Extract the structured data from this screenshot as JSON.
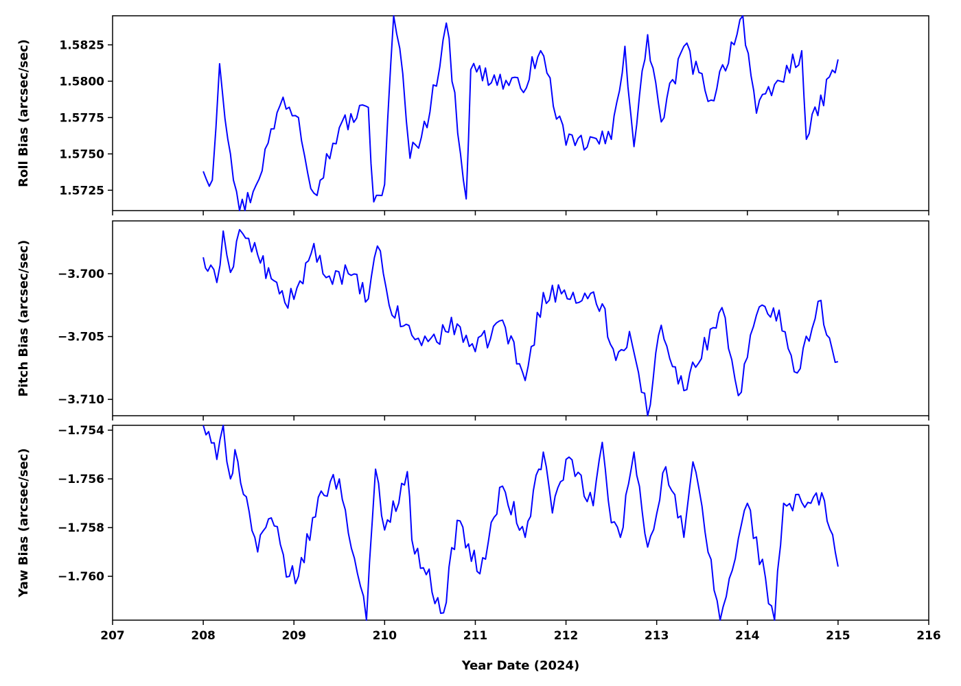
{
  "chart_data": [
    {
      "type": "line",
      "ylabel": "Roll Bias (arcsec/sec)",
      "ylim": [
        1.5711,
        1.5845
      ],
      "yticks": [
        1.5725,
        1.575,
        1.5775,
        1.58,
        1.5825
      ],
      "ytick_labels": [
        "1.5725",
        "1.5750",
        "1.5775",
        "1.5800",
        "1.5825"
      ],
      "color": "#0000ff",
      "key_points": [
        [
          208.0,
          1.5738
        ],
        [
          208.1,
          1.5732
        ],
        [
          208.18,
          1.5812
        ],
        [
          208.3,
          1.575
        ],
        [
          208.4,
          1.5711
        ],
        [
          208.55,
          1.5724
        ],
        [
          208.88,
          1.5789
        ],
        [
          209.05,
          1.5775
        ],
        [
          209.22,
          1.5723
        ],
        [
          209.5,
          1.5768
        ],
        [
          209.82,
          1.5782
        ],
        [
          209.88,
          1.5717
        ],
        [
          210.0,
          1.5729
        ],
        [
          210.1,
          1.5845
        ],
        [
          210.2,
          1.5805
        ],
        [
          210.28,
          1.5747
        ],
        [
          210.5,
          1.5779
        ],
        [
          210.68,
          1.584
        ],
        [
          210.9,
          1.5719
        ],
        [
          210.95,
          1.5808
        ],
        [
          211.5,
          1.5795
        ],
        [
          211.72,
          1.5821
        ],
        [
          212.0,
          1.5756
        ],
        [
          212.5,
          1.576
        ],
        [
          212.65,
          1.5824
        ],
        [
          212.75,
          1.5755
        ],
        [
          212.9,
          1.5832
        ],
        [
          213.05,
          1.5772
        ],
        [
          213.3,
          1.5824
        ],
        [
          213.6,
          1.5787
        ],
        [
          213.95,
          1.5845
        ],
        [
          214.1,
          1.5778
        ],
        [
          214.6,
          1.5821
        ],
        [
          214.65,
          1.576
        ],
        [
          215.0,
          1.5815
        ]
      ]
    },
    {
      "type": "line",
      "ylabel": "Pitch Bias (arcsec/sec)",
      "ylim": [
        -3.7113,
        -3.6958
      ],
      "yticks": [
        -3.71,
        -3.705,
        -3.7
      ],
      "ytick_labels": [
        "−3.710",
        "−3.705",
        "−3.700"
      ],
      "color": "#0000ff",
      "key_points": [
        [
          208.0,
          -3.6987
        ],
        [
          208.05,
          -3.6998
        ],
        [
          208.15,
          -3.7007
        ],
        [
          208.22,
          -3.6966
        ],
        [
          208.3,
          -3.6999
        ],
        [
          208.4,
          -3.6965
        ],
        [
          208.6,
          -3.6985
        ],
        [
          208.75,
          -3.7004
        ],
        [
          208.9,
          -3.7023
        ],
        [
          209.1,
          -3.7008
        ],
        [
          209.22,
          -3.6976
        ],
        [
          209.32,
          -3.7
        ],
        [
          209.6,
          -3.7
        ],
        [
          209.82,
          -3.702
        ],
        [
          209.92,
          -3.6978
        ],
        [
          210.05,
          -3.7025
        ],
        [
          210.3,
          -3.7049
        ],
        [
          210.48,
          -3.7054
        ],
        [
          210.8,
          -3.704
        ],
        [
          211.0,
          -3.7062
        ],
        [
          211.3,
          -3.7037
        ],
        [
          211.55,
          -3.7085
        ],
        [
          211.75,
          -3.7015
        ],
        [
          211.95,
          -3.7016
        ],
        [
          212.4,
          -3.7024
        ],
        [
          212.55,
          -3.7069
        ],
        [
          212.7,
          -3.7046
        ],
        [
          212.9,
          -3.7113
        ],
        [
          213.05,
          -3.7041
        ],
        [
          213.3,
          -3.7093
        ],
        [
          213.72,
          -3.7027
        ],
        [
          213.9,
          -3.7097
        ],
        [
          214.1,
          -3.7033
        ],
        [
          214.35,
          -3.7029
        ],
        [
          214.55,
          -3.7079
        ],
        [
          214.78,
          -3.7022
        ],
        [
          215.0,
          -3.707
        ]
      ]
    },
    {
      "type": "line",
      "ylabel": "Yaw Bias (arcsec/sec)",
      "xlabel": "Year Date (2024)",
      "xlim": [
        207,
        216
      ],
      "xticks": [
        207,
        208,
        209,
        210,
        211,
        212,
        213,
        214,
        215,
        216
      ],
      "xtick_labels": [
        "207",
        "208",
        "209",
        "210",
        "211",
        "212",
        "213",
        "214",
        "215",
        "216"
      ],
      "ylim": [
        -1.7618,
        -1.7538
      ],
      "yticks": [
        -1.76,
        -1.758,
        -1.756,
        -1.754
      ],
      "ytick_labels": [
        "−1.760",
        "−1.758",
        "−1.756",
        "−1.754"
      ],
      "color": "#0000ff",
      "key_points": [
        [
          208.0,
          -1.7538
        ],
        [
          208.15,
          -1.7552
        ],
        [
          208.22,
          -1.7538
        ],
        [
          208.3,
          -1.756
        ],
        [
          208.35,
          -1.7548
        ],
        [
          208.6,
          -1.759
        ],
        [
          208.75,
          -1.7576
        ],
        [
          208.95,
          -1.76
        ],
        [
          209.05,
          -1.76
        ],
        [
          209.3,
          -1.7565
        ],
        [
          209.5,
          -1.756
        ],
        [
          209.8,
          -1.7618
        ],
        [
          209.9,
          -1.7556
        ],
        [
          210.0,
          -1.7581
        ],
        [
          210.25,
          -1.7557
        ],
        [
          210.3,
          -1.7585
        ],
        [
          210.65,
          -1.7615
        ],
        [
          210.8,
          -1.7577
        ],
        [
          211.05,
          -1.7599
        ],
        [
          211.3,
          -1.7563
        ],
        [
          211.55,
          -1.7584
        ],
        [
          211.7,
          -1.7556
        ],
        [
          211.75,
          -1.7549
        ],
        [
          211.85,
          -1.7574
        ],
        [
          212.0,
          -1.7552
        ],
        [
          212.3,
          -1.7571
        ],
        [
          212.4,
          -1.7545
        ],
        [
          212.5,
          -1.7578
        ],
        [
          212.6,
          -1.7584
        ],
        [
          212.75,
          -1.7549
        ],
        [
          212.9,
          -1.7588
        ],
        [
          213.1,
          -1.7555
        ],
        [
          213.3,
          -1.7584
        ],
        [
          213.4,
          -1.7553
        ],
        [
          213.7,
          -1.7618
        ],
        [
          214.0,
          -1.757
        ],
        [
          214.3,
          -1.7618
        ],
        [
          214.4,
          -1.757
        ],
        [
          214.7,
          -1.757
        ],
        [
          214.85,
          -1.7569
        ],
        [
          215.0,
          -1.7596
        ]
      ]
    }
  ]
}
